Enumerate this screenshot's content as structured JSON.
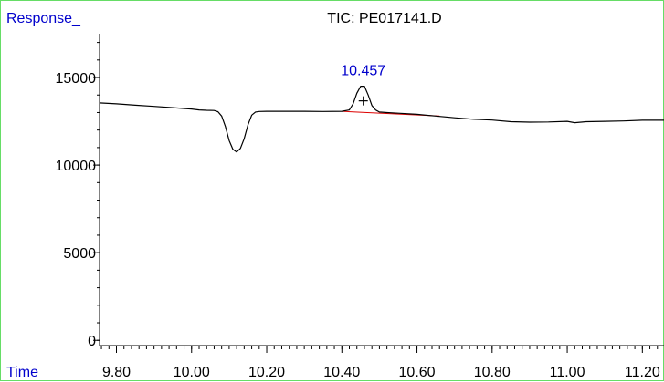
{
  "chart_data": {
    "type": "line",
    "title": "TIC: PE017141.D",
    "ylabel": "Response_",
    "xlabel": "Time",
    "xlim": [
      9.755,
      11.26
    ],
    "ylim": [
      -300,
      17500
    ],
    "x_ticks": [
      "9.80",
      "10.00",
      "10.20",
      "10.40",
      "10.60",
      "10.80",
      "11.00",
      "11.20"
    ],
    "y_ticks": [
      "0",
      "5000",
      "10000",
      "15000"
    ],
    "peak_label": "10.457",
    "grid": false,
    "colors": {
      "trace": "#000000",
      "baseline": "#dd0000",
      "annotation": "#0000cc",
      "frame": "#66dd66"
    },
    "series": [
      {
        "x": [
          9.755,
          9.8,
          9.85,
          9.9,
          9.95,
          10.0,
          10.02,
          10.04,
          10.06,
          10.07,
          10.08,
          10.09,
          10.1,
          10.11,
          10.12,
          10.13,
          10.14,
          10.15,
          10.16,
          10.17,
          10.18,
          10.2,
          10.25,
          10.3,
          10.35,
          10.4,
          10.42,
          10.43,
          10.44,
          10.45,
          10.46,
          10.47,
          10.48,
          10.49,
          10.5,
          10.52,
          10.55,
          10.6,
          10.65,
          10.7,
          10.75,
          10.8,
          10.85,
          10.9,
          10.95,
          11.0,
          11.02,
          11.05,
          11.1,
          11.15,
          11.2,
          11.26
        ],
        "y": [
          13550,
          13500,
          13420,
          13350,
          13280,
          13200,
          13150,
          13130,
          13120,
          13050,
          12800,
          12200,
          11400,
          10900,
          10750,
          10950,
          11500,
          12300,
          12850,
          13030,
          13060,
          13070,
          13070,
          13070,
          13060,
          13070,
          13150,
          13500,
          14100,
          14500,
          14500,
          14000,
          13400,
          13150,
          13030,
          13000,
          12960,
          12900,
          12800,
          12700,
          12620,
          12570,
          12480,
          12450,
          12460,
          12500,
          12420,
          12480,
          12500,
          12520,
          12560,
          12560
        ]
      }
    ],
    "baseline_segment": {
      "x": [
        10.4,
        10.66
      ],
      "y": [
        13070,
        12800
      ]
    }
  }
}
